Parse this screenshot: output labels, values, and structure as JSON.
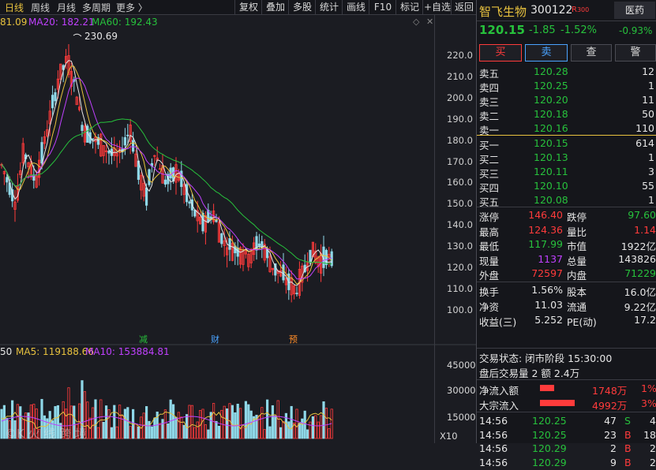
{
  "top_bar": {
    "periods": [
      "日线",
      "周线",
      "月线",
      "多周期",
      "更多 〉"
    ],
    "tools": [
      "复权",
      "叠加",
      "多股",
      "统计",
      "画线",
      "F10",
      "标记",
      "+自选",
      "返回"
    ]
  },
  "ma_legend": {
    "ma5": "81.09",
    "ma20": "MA20: 182.21",
    "ma60": "MA60: 192.43"
  },
  "max_label": "230.69",
  "price_axis": [
    "220.0",
    "210.0",
    "200.0",
    "190.0",
    "180.0",
    "170.0",
    "160.0",
    "150.0",
    "140.0",
    "130.0",
    "120.0",
    "110.0",
    "100.0"
  ],
  "event_markers": [
    "减",
    "财",
    "预"
  ],
  "volume_legend": {
    "vol": "50",
    "ma5": "MA5: 119188.66",
    "ma10": "MA10: 153884.81"
  },
  "volume_axis": [
    "45000",
    "30000",
    "15000",
    "X10"
  ],
  "watermark": "©K 火 线 跨 境",
  "stock": {
    "name": "智飞生物",
    "code": "300122",
    "tag": "R",
    "tag_num": "300",
    "sector": "医药",
    "sector_change": "-0.93%",
    "price": "120.15",
    "change": "-1.85",
    "change_pct": "-1.52%"
  },
  "trade_buttons": [
    "买",
    "卖",
    "查",
    "警"
  ],
  "asks": [
    {
      "label": "卖五",
      "price": "120.28",
      "vol": "12"
    },
    {
      "label": "卖四",
      "price": "120.25",
      "vol": "1"
    },
    {
      "label": "卖三",
      "price": "120.20",
      "vol": "11"
    },
    {
      "label": "卖二",
      "price": "120.18",
      "vol": "50"
    },
    {
      "label": "卖一",
      "price": "120.16",
      "vol": "110"
    }
  ],
  "bids": [
    {
      "label": "买一",
      "price": "120.15",
      "vol": "614"
    },
    {
      "label": "买二",
      "price": "120.13",
      "vol": "1"
    },
    {
      "label": "买三",
      "price": "120.11",
      "vol": "3"
    },
    {
      "label": "买四",
      "price": "120.10",
      "vol": "55"
    },
    {
      "label": "买五",
      "price": "120.08",
      "vol": "1"
    }
  ],
  "stats": [
    {
      "l1": "涨停",
      "v1": "146.40",
      "l2": "跌停",
      "v2": "97.60",
      "c1": "red",
      "c2": "green"
    },
    {
      "l1": "最高",
      "v1": "124.36",
      "l2": "量比",
      "v2": "1.14",
      "c1": "red",
      "c2": "red"
    },
    {
      "l1": "最低",
      "v1": "117.99",
      "l2": "市值",
      "v2": "1922亿",
      "c1": "green",
      "c2": "white"
    },
    {
      "l1": "现量",
      "v1": "1137",
      "l2": "总量",
      "v2": "143826",
      "c1": "purple",
      "c2": "white"
    },
    {
      "l1": "外盘",
      "v1": "72597",
      "l2": "内盘",
      "v2": "71229",
      "c1": "red",
      "c2": "green"
    }
  ],
  "fundamentals": [
    {
      "l1": "换手",
      "v1": "1.56%",
      "l2": "股本",
      "v2": "16.0亿"
    },
    {
      "l1": "净资",
      "v1": "11.03",
      "l2": "流通",
      "v2": "9.22亿"
    },
    {
      "l1": "收益(三)",
      "v1": "5.252",
      "l2": "PE(动)",
      "v2": "17.2"
    }
  ],
  "trade_status": "交易状态: 闭市阶段 15:30:00",
  "after_hours": "盘后交易量 2 额 2.4万",
  "flows": [
    {
      "label": "净流入额",
      "value": "1748万",
      "pct": "1%"
    },
    {
      "label": "大宗流入",
      "value": "4992万",
      "pct": "3%"
    }
  ],
  "ticks": [
    {
      "time": "14:56",
      "price": "120.25",
      "vol": "47",
      "side": "S",
      "extra": "4"
    },
    {
      "time": "14:56",
      "price": "120.25",
      "vol": "23",
      "side": "B",
      "extra": "18"
    },
    {
      "time": "14:56",
      "price": "120.29",
      "vol": "2",
      "side": "B",
      "extra": "2"
    },
    {
      "time": "14:56",
      "price": "120.29",
      "vol": "9",
      "side": "B",
      "extra": "2"
    }
  ],
  "colors": {
    "up": "#ff3b3b",
    "down": "#27c13c",
    "ma5": "#e8e8e8",
    "ma10": "#e8c23e",
    "ma20": "#c040ff",
    "ma60": "#27c13c"
  }
}
